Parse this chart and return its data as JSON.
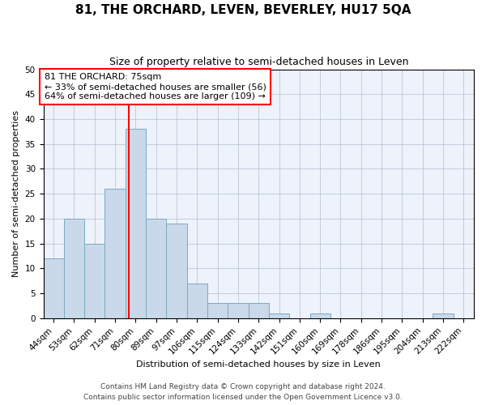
{
  "title": "81, THE ORCHARD, LEVEN, BEVERLEY, HU17 5QA",
  "subtitle": "Size of property relative to semi-detached houses in Leven",
  "xlabel": "Distribution of semi-detached houses by size in Leven",
  "ylabel": "Number of semi-detached properties",
  "categories": [
    "44sqm",
    "53sqm",
    "62sqm",
    "71sqm",
    "80sqm",
    "89sqm",
    "97sqm",
    "106sqm",
    "115sqm",
    "124sqm",
    "133sqm",
    "142sqm",
    "151sqm",
    "160sqm",
    "169sqm",
    "178sqm",
    "186sqm",
    "195sqm",
    "204sqm",
    "213sqm",
    "222sqm"
  ],
  "values": [
    12,
    20,
    15,
    26,
    38,
    20,
    19,
    7,
    3,
    3,
    3,
    1,
    0,
    1,
    0,
    0,
    0,
    0,
    0,
    1,
    0
  ],
  "bar_color": "#c9d9ea",
  "bar_edge_color": "#7aaabf",
  "red_line_x": 3.67,
  "annotation_title": "81 THE ORCHARD: 75sqm",
  "annotation_line1": "← 33% of semi-detached houses are smaller (56)",
  "annotation_line2": "64% of semi-detached houses are larger (109) →",
  "ylim": [
    0,
    50
  ],
  "yticks": [
    0,
    5,
    10,
    15,
    20,
    25,
    30,
    35,
    40,
    45,
    50
  ],
  "footer1": "Contains HM Land Registry data © Crown copyright and database right 2024.",
  "footer2": "Contains public sector information licensed under the Open Government Licence v3.0.",
  "background_color": "#eef2fb",
  "grid_color": "#b0bfd0",
  "title_fontsize": 11,
  "subtitle_fontsize": 9,
  "xlabel_fontsize": 8,
  "ylabel_fontsize": 8,
  "tick_fontsize": 7.5,
  "annotation_fontsize": 8,
  "footer_fontsize": 6.5
}
